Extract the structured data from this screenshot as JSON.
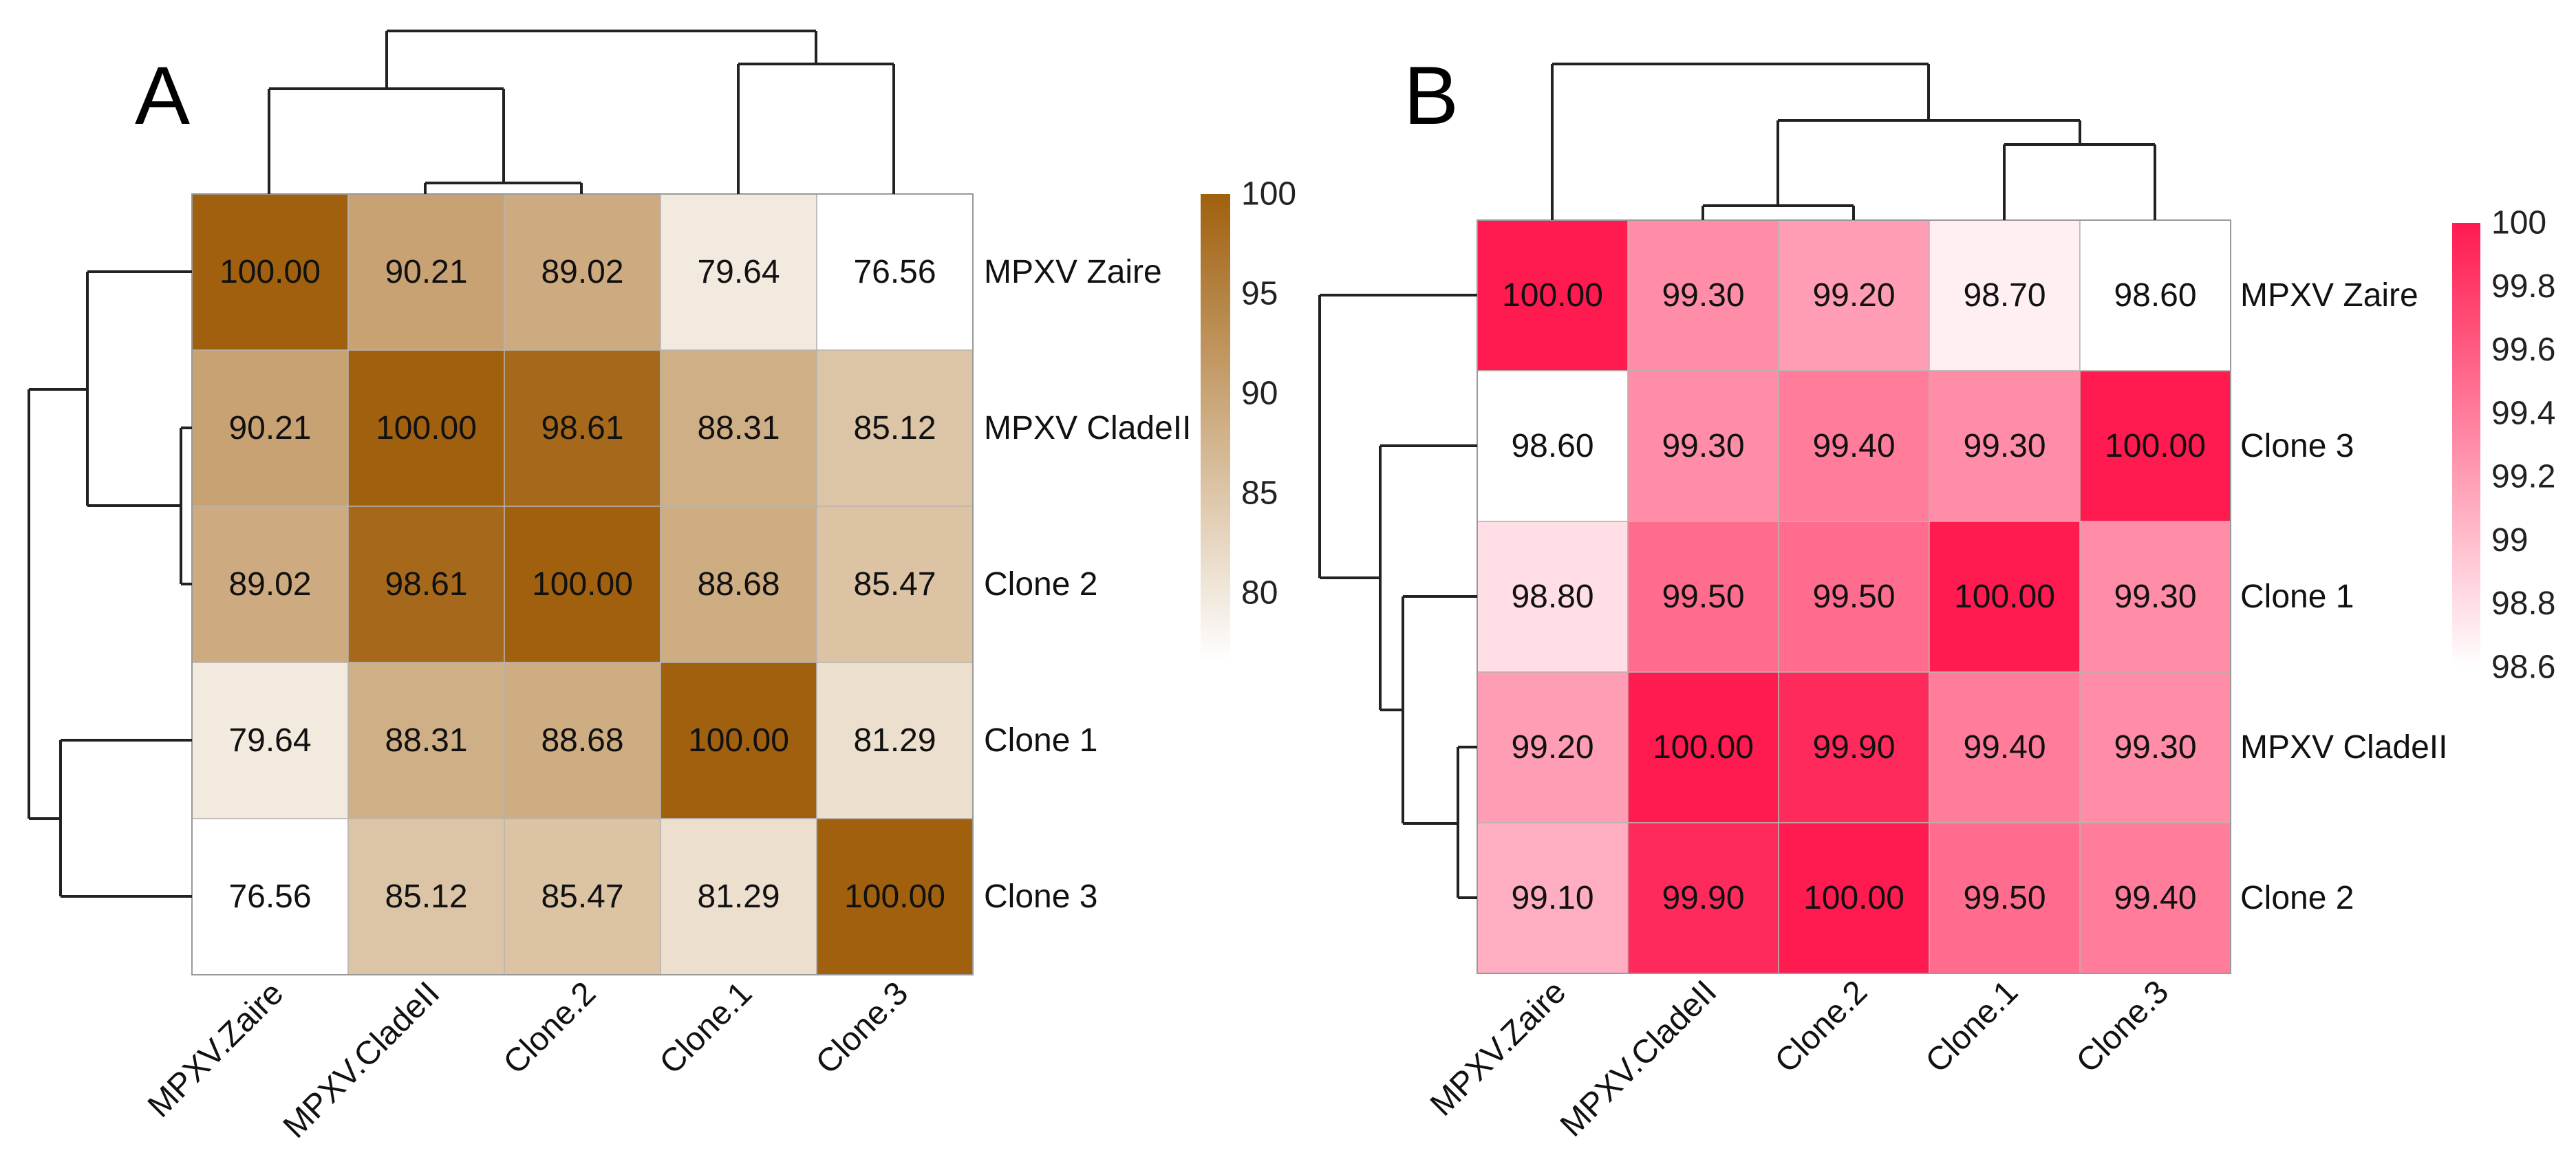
{
  "chart_data": [
    {
      "type": "heatmap",
      "panel_label": "A",
      "row_labels": [
        "MPXV Zaire",
        "MPXV CladeII",
        "Clone 2",
        "Clone 1",
        "Clone 3"
      ],
      "col_labels": [
        "MPXV.Zaire",
        "MPXV.CladeII",
        "Clone.2",
        "Clone.1",
        "Clone.3"
      ],
      "values": [
        [
          100.0,
          90.21,
          89.02,
          79.64,
          76.56
        ],
        [
          90.21,
          100.0,
          98.61,
          88.31,
          85.12
        ],
        [
          89.02,
          98.61,
          100.0,
          88.68,
          85.47
        ],
        [
          79.64,
          88.31,
          88.68,
          100.0,
          81.29
        ],
        [
          76.56,
          85.12,
          85.47,
          81.29,
          100.0
        ]
      ],
      "value_labels": [
        [
          "100.00",
          "90.21",
          "89.02",
          "79.64",
          "76.56"
        ],
        [
          "90.21",
          "100.00",
          "98.61",
          "88.31",
          "85.12"
        ],
        [
          "89.02",
          "98.61",
          "100.00",
          "88.68",
          "85.47"
        ],
        [
          "79.64",
          "88.31",
          "88.68",
          "100.00",
          "81.29"
        ],
        [
          "76.56",
          "85.12",
          "85.47",
          "81.29",
          "100.00"
        ]
      ],
      "colorbar": {
        "range": [
          76.56,
          100
        ],
        "ticks": [
          100,
          95,
          90,
          85,
          80
        ],
        "tick_labels": [
          "100",
          "95",
          "90",
          "85",
          "80"
        ],
        "color_low": "#ffffff",
        "color_high": "#a0600e"
      }
    },
    {
      "type": "heatmap",
      "panel_label": "B",
      "row_labels": [
        "MPXV Zaire",
        "Clone 3",
        "Clone 1",
        "MPXV CladeII",
        "Clone 2"
      ],
      "col_labels": [
        "MPXV.Zaire",
        "MPXV.CladeII",
        "Clone.2",
        "Clone.1",
        "Clone.3"
      ],
      "values": [
        [
          100.0,
          99.3,
          99.2,
          98.7,
          98.6
        ],
        [
          98.6,
          99.3,
          99.4,
          99.3,
          100.0
        ],
        [
          98.8,
          99.5,
          99.5,
          100.0,
          99.3
        ],
        [
          99.2,
          100.0,
          99.9,
          99.4,
          99.3
        ],
        [
          99.1,
          99.9,
          100.0,
          99.5,
          99.4
        ]
      ],
      "value_labels": [
        [
          "100.00",
          "99.30",
          "99.20",
          "98.70",
          "98.60"
        ],
        [
          "98.60",
          "99.30",
          "99.40",
          "99.30",
          "100.00"
        ],
        [
          "98.80",
          "99.50",
          "99.50",
          "100.00",
          "99.30"
        ],
        [
          "99.20",
          "100.00",
          "99.90",
          "99.40",
          "99.30"
        ],
        [
          "99.10",
          "99.90",
          "100.00",
          "99.50",
          "99.40"
        ]
      ],
      "colorbar": {
        "range": [
          98.6,
          100
        ],
        "ticks": [
          100,
          99.8,
          99.6,
          99.4,
          99.2,
          99,
          98.8,
          98.6
        ],
        "tick_labels": [
          "100",
          "99.8",
          "99.6",
          "99.4",
          "99.2",
          "99",
          "98.8",
          "98.6"
        ],
        "color_low": "#ffffff",
        "color_high": "#ff1a50"
      }
    }
  ]
}
